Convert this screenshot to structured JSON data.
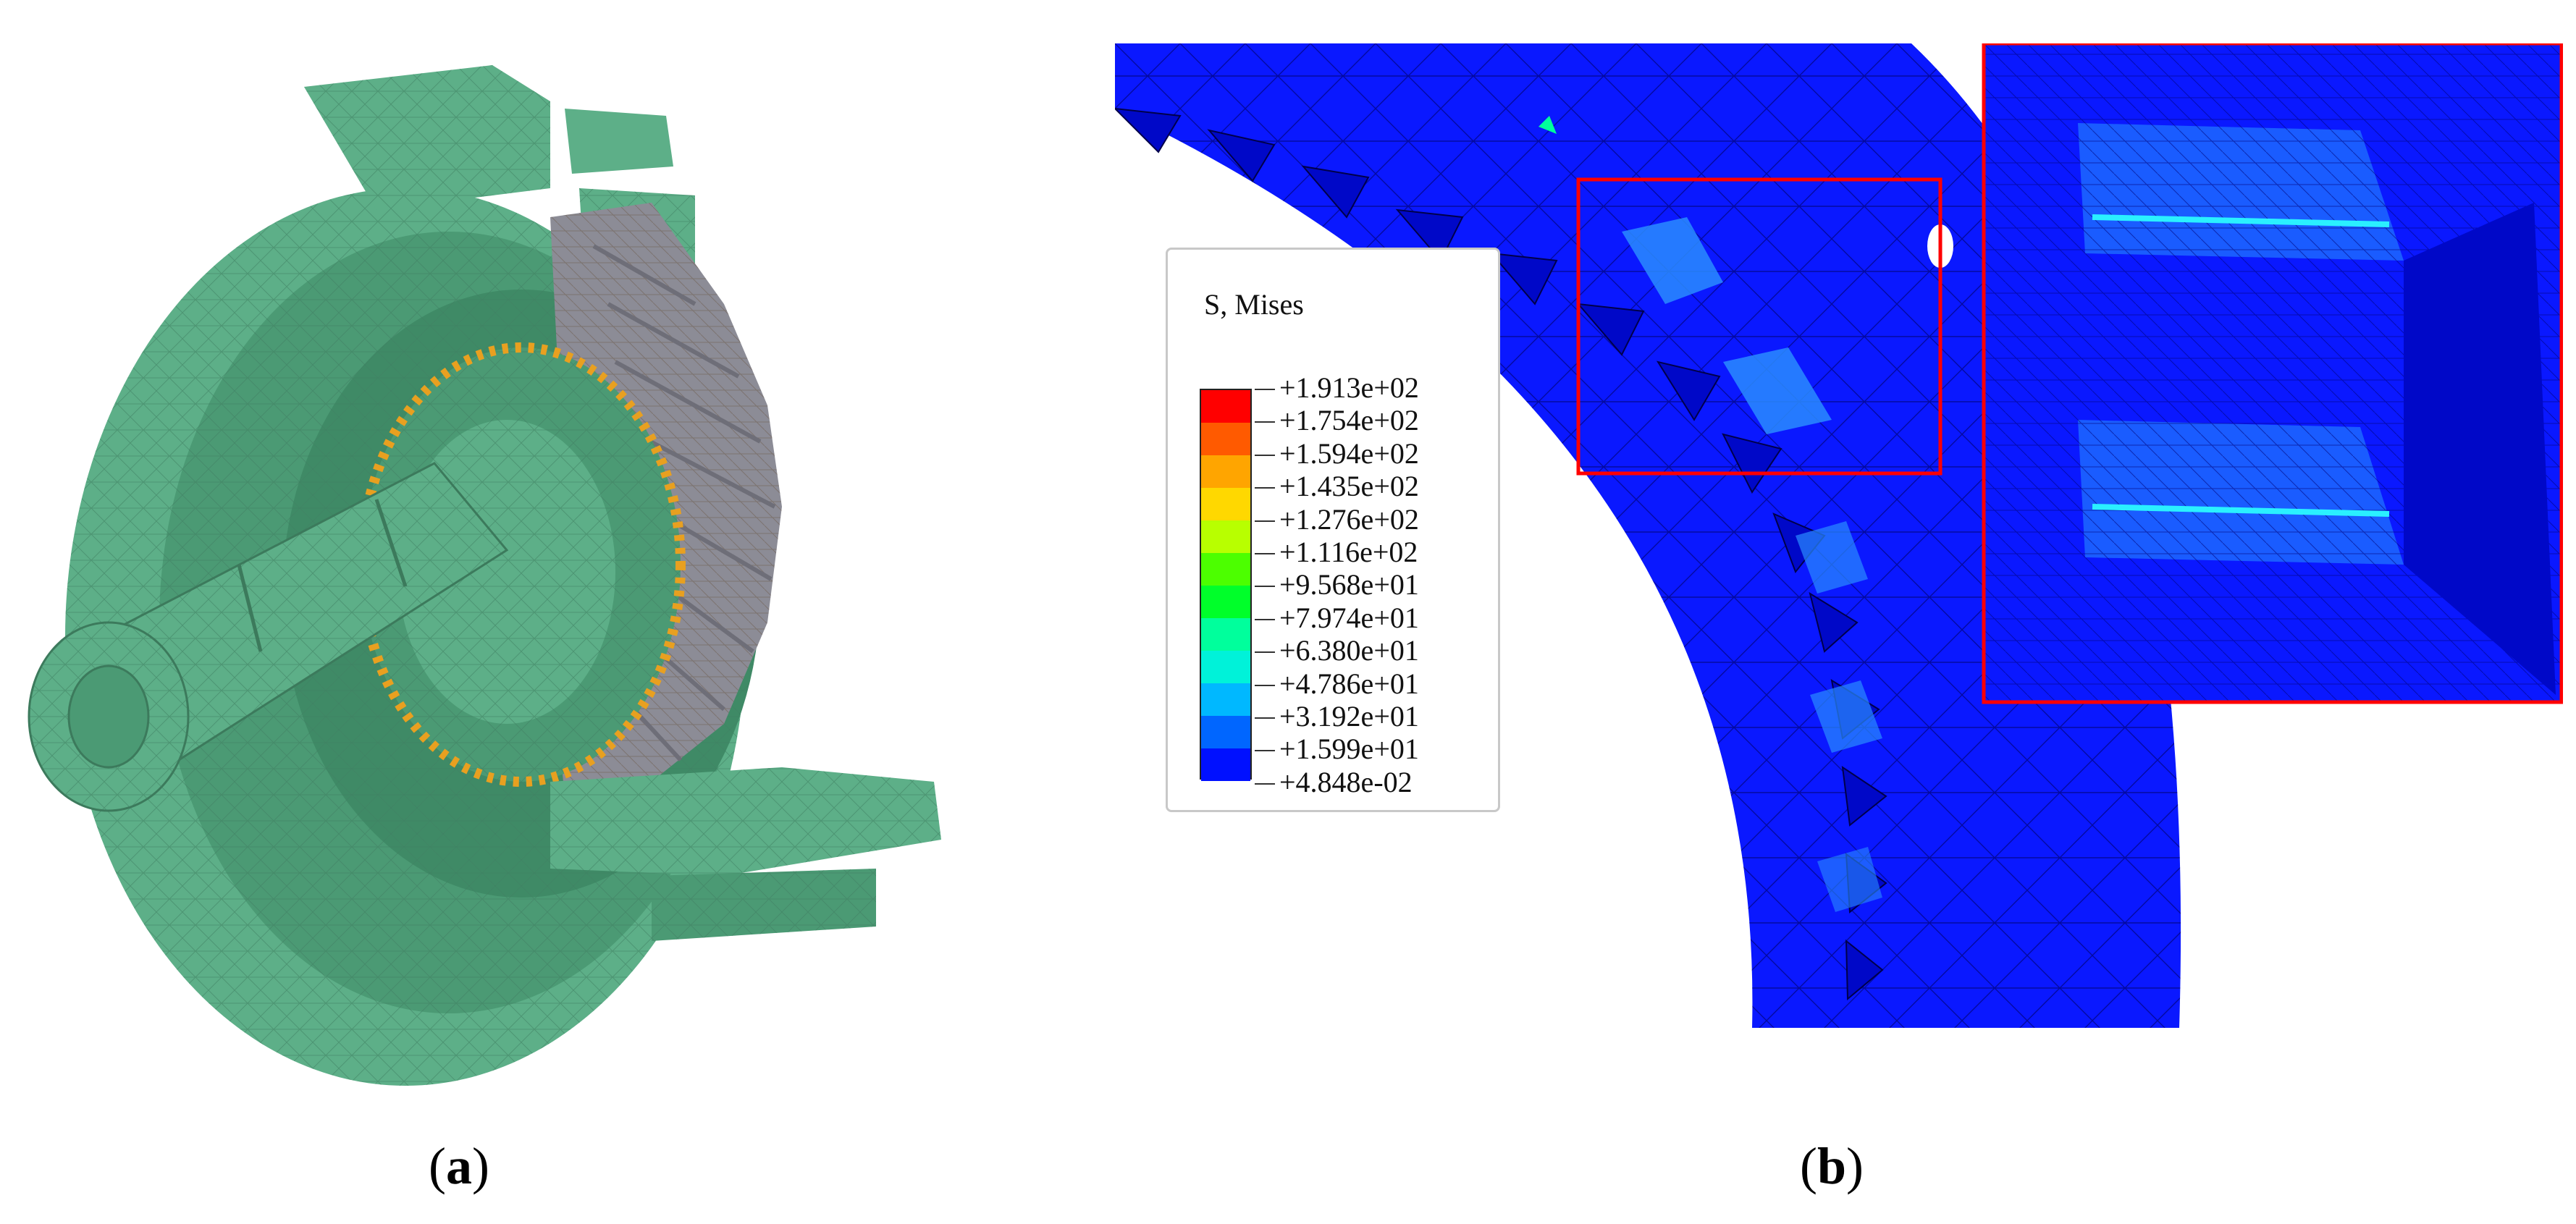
{
  "captions": {
    "a": {
      "open": "(",
      "letter": "a",
      "close": ")"
    },
    "b": {
      "open": "(",
      "letter": "b",
      "close": ")"
    }
  },
  "legend": {
    "title": "S, Mises",
    "values": [
      "+1.913e+02",
      "+1.754e+02",
      "+1.594e+02",
      "+1.435e+02",
      "+1.276e+02",
      "+1.116e+02",
      "+9.568e+01",
      "+7.974e+01",
      "+6.380e+01",
      "+4.786e+01",
      "+3.192e+01",
      "+1.599e+01",
      "+4.848e-02"
    ],
    "colors": [
      "#ff0000",
      "#ff5a00",
      "#ffa500",
      "#ffd800",
      "#b8ff00",
      "#4cff00",
      "#00ff2a",
      "#00ff9c",
      "#00f2d9",
      "#00b8ff",
      "#0066ff",
      "#0010ff"
    ]
  },
  "colors": {
    "mesh_green": "#5daf88",
    "mesh_green_dark": "#4b9a74",
    "mesh_edge": "#8a6a5a",
    "gear_gray": "#8c8c96",
    "stress_orange": "#e8a020",
    "stress_blue": "#0a18ff",
    "stress_blue_dark": "#0008c8",
    "stress_highlight": "#2a8cff",
    "zoom_box": "#ff0000"
  }
}
